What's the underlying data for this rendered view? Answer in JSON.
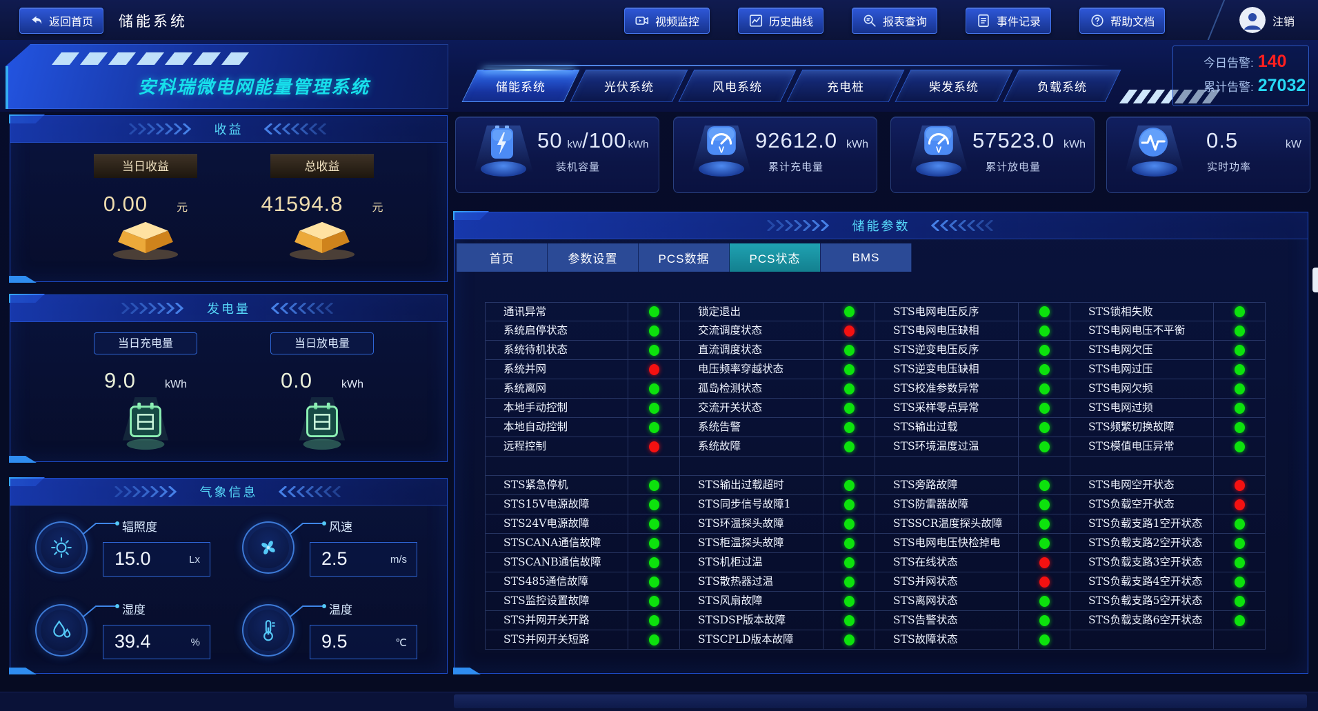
{
  "topbar": {
    "back_button": {
      "label": "返回首页",
      "icon": "back-arrow-icon"
    },
    "title": "储能系统",
    "nav_buttons": [
      {
        "label": "视频监控",
        "icon": "video-icon"
      },
      {
        "label": "历史曲线",
        "icon": "curve-icon"
      },
      {
        "label": "报表查询",
        "icon": "report-search-icon"
      },
      {
        "label": "事件记录",
        "icon": "event-log-icon"
      },
      {
        "label": "帮助文档",
        "icon": "help-icon"
      }
    ],
    "user": {
      "label": "注销",
      "icon": "user-avatar-icon"
    }
  },
  "header": {
    "logo_title": "安科瑞微电网能量管理系统",
    "system_tabs": [
      {
        "label": "储能系统",
        "active": true
      },
      {
        "label": "光伏系统",
        "active": false
      },
      {
        "label": "风电系统",
        "active": false
      },
      {
        "label": "充电桩",
        "active": false
      },
      {
        "label": "柴发系统",
        "active": false
      },
      {
        "label": "负载系统",
        "active": false
      }
    ],
    "alarm": {
      "today_label": "今日告警:",
      "today_value": "140",
      "total_label": "累计告警:",
      "total_value": "27032"
    }
  },
  "income_panel": {
    "title": "收益",
    "items": [
      {
        "label": "当日收益",
        "value": "0.00",
        "unit": "元",
        "icon": "gold-ingot-icon"
      },
      {
        "label": "总收益",
        "value": "41594.8",
        "unit": "元",
        "icon": "gold-ingot-icon"
      }
    ]
  },
  "generation_panel": {
    "title": "发电量",
    "items": [
      {
        "label": "当日充电量",
        "value": "9.0",
        "unit": "kWh",
        "icon": "calendar-battery-icon"
      },
      {
        "label": "当日放电量",
        "value": "0.0",
        "unit": "kWh",
        "icon": "calendar-battery-icon"
      }
    ]
  },
  "weather_panel": {
    "title": "气象信息",
    "items": [
      {
        "label": "辐照度",
        "value": "15.0",
        "unit": "Lx",
        "icon": "sun-icon"
      },
      {
        "label": "风速",
        "value": "2.5",
        "unit": "m/s",
        "icon": "fan-icon"
      },
      {
        "label": "湿度",
        "value": "39.4",
        "unit": "%",
        "icon": "humidity-icon"
      },
      {
        "label": "温度",
        "value": "9.5",
        "unit": "℃",
        "icon": "temperature-icon"
      }
    ]
  },
  "stat_cards": [
    {
      "icon": "battery-icon",
      "value": "50",
      "unit": "kW",
      "value2": "/100",
      "unit2": "kWh",
      "label": "装机容量"
    },
    {
      "icon": "charge-meter-icon",
      "value": "92612.0",
      "unit": "kWh",
      "label": "累计充电量"
    },
    {
      "icon": "discharge-meter-icon",
      "value": "57523.0",
      "unit": "kWh",
      "label": "累计放电量"
    },
    {
      "icon": "realtime-power-icon",
      "value": "0.5",
      "unit": "kW",
      "label": "实时功率"
    }
  ],
  "storage_panel": {
    "title": "储能参数",
    "tabs": [
      {
        "label": "首页",
        "active": false
      },
      {
        "label": "参数设置",
        "active": false
      },
      {
        "label": "PCS数据",
        "active": false
      },
      {
        "label": "PCS状态",
        "active": true
      },
      {
        "label": "BMS",
        "active": false
      }
    ],
    "status_table": {
      "sections": [
        {
          "rows": [
            [
              [
                "通讯异常",
                "g"
              ],
              [
                "锁定退出",
                "g"
              ],
              [
                "STS电网电压反序",
                "g"
              ],
              [
                "STS锁相失败",
                "g"
              ]
            ],
            [
              [
                "系统启停状态",
                "g"
              ],
              [
                "交流调度状态",
                "r"
              ],
              [
                "STS电网电压缺相",
                "g"
              ],
              [
                "STS电网电压不平衡",
                "g"
              ]
            ],
            [
              [
                "系统待机状态",
                "g"
              ],
              [
                "直流调度状态",
                "g"
              ],
              [
                "STS逆变电压反序",
                "g"
              ],
              [
                "STS电网欠压",
                "g"
              ]
            ],
            [
              [
                "系统并网",
                "r"
              ],
              [
                "电压频率穿越状态",
                "g"
              ],
              [
                "STS逆变电压缺相",
                "g"
              ],
              [
                "STS电网过压",
                "g"
              ]
            ],
            [
              [
                "系统离网",
                "g"
              ],
              [
                "孤岛检测状态",
                "g"
              ],
              [
                "STS校准参数异常",
                "g"
              ],
              [
                "STS电网欠频",
                "g"
              ]
            ],
            [
              [
                "本地手动控制",
                "g"
              ],
              [
                "交流开关状态",
                "g"
              ],
              [
                "STS采样零点异常",
                "g"
              ],
              [
                "STS电网过频",
                "g"
              ]
            ],
            [
              [
                "本地自动控制",
                "g"
              ],
              [
                "系统告警",
                "g"
              ],
              [
                "STS输出过载",
                "g"
              ],
              [
                "STS频繁切换故障",
                "g"
              ]
            ],
            [
              [
                "远程控制",
                "r"
              ],
              [
                "系统故障",
                "g"
              ],
              [
                "STS环境温度过温",
                "g"
              ],
              [
                "STS模值电压异常",
                "g"
              ]
            ]
          ]
        },
        {
          "rows": [
            [
              [
                "STS紧急停机",
                "g"
              ],
              [
                "STS输出过载超时",
                "g"
              ],
              [
                "STS旁路故障",
                "g"
              ],
              [
                "STS电网空开状态",
                "r"
              ]
            ],
            [
              [
                "STS15V电源故障",
                "g"
              ],
              [
                "STS同步信号故障1",
                "g"
              ],
              [
                "STS防雷器故障",
                "g"
              ],
              [
                "STS负载空开状态",
                "r"
              ]
            ],
            [
              [
                "STS24V电源故障",
                "g"
              ],
              [
                "STS环温探头故障",
                "g"
              ],
              [
                "STSSCR温度探头故障",
                "g"
              ],
              [
                "STS负载支路1空开状态",
                "g"
              ]
            ],
            [
              [
                "STSCANA通信故障",
                "g"
              ],
              [
                "STS柜温探头故障",
                "g"
              ],
              [
                "STS电网电压快检掉电",
                "g"
              ],
              [
                "STS负载支路2空开状态",
                "g"
              ]
            ],
            [
              [
                "STSCANB通信故障",
                "g"
              ],
              [
                "STS机柜过温",
                "g"
              ],
              [
                "STS在线状态",
                "r"
              ],
              [
                "STS负载支路3空开状态",
                "g"
              ]
            ],
            [
              [
                "STS485通信故障",
                "g"
              ],
              [
                "STS散热器过温",
                "g"
              ],
              [
                "STS并网状态",
                "r"
              ],
              [
                "STS负载支路4空开状态",
                "g"
              ]
            ],
            [
              [
                "STS监控设置故障",
                "g"
              ],
              [
                "STS风扇故障",
                "g"
              ],
              [
                "STS离网状态",
                "g"
              ],
              [
                "STS负载支路5空开状态",
                "g"
              ]
            ],
            [
              [
                "STS并网开关开路",
                "g"
              ],
              [
                "STSDSP版本故障",
                "g"
              ],
              [
                "STS告警状态",
                "g"
              ],
              [
                "STS负载支路6空开状态",
                "g"
              ]
            ],
            [
              [
                "STS并网开关短路",
                "g"
              ],
              [
                "STSCPLD版本故障",
                "g"
              ],
              [
                "STS故障状态",
                "g"
              ],
              [
                "",
                null
              ]
            ]
          ]
        }
      ]
    }
  },
  "colors": {
    "status_green": "#0de20d",
    "status_red": "#f51111",
    "alarm_red": "#ff1f1f",
    "alarm_cyan": "#27d9f5",
    "accent_cyan": "#17dfeb"
  }
}
